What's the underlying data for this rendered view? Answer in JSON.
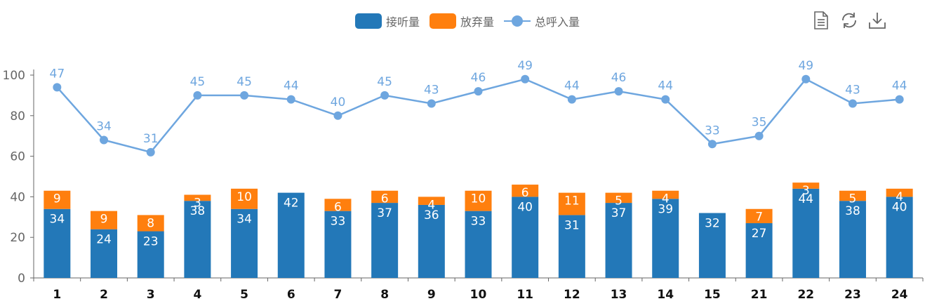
{
  "legend": {
    "answered": "接听量",
    "abandoned": "放弃量",
    "total": "总呼入量"
  },
  "toolbox": [
    "data-view-icon",
    "refresh-icon",
    "download-icon"
  ],
  "colors": {
    "answered": "#2378b8",
    "abandoned": "#ff7f0e",
    "total": "#6ea6df",
    "axis": "#666666",
    "grid": "#cccccc",
    "bar_label": "#ffffff",
    "x_label": "#111111"
  },
  "chart_data": {
    "type": "bar",
    "categories": [
      "1",
      "2",
      "3",
      "4",
      "5",
      "6",
      "7",
      "8",
      "9",
      "10",
      "11",
      "12",
      "13",
      "14",
      "15",
      "21",
      "22",
      "23",
      "24"
    ],
    "series": [
      {
        "name": "接听量",
        "kind": "bar",
        "stack": "calls",
        "values": [
          34,
          24,
          23,
          38,
          34,
          42,
          33,
          37,
          36,
          33,
          40,
          31,
          37,
          39,
          32,
          27,
          44,
          38,
          40
        ]
      },
      {
        "name": "放弃量",
        "kind": "bar",
        "stack": "calls",
        "values": [
          9,
          9,
          8,
          3,
          10,
          0,
          6,
          6,
          4,
          10,
          6,
          11,
          5,
          4,
          0,
          7,
          3,
          5,
          4
        ]
      },
      {
        "name": "总呼入量",
        "kind": "line",
        "values": [
          47,
          34,
          31,
          45,
          45,
          44,
          40,
          45,
          43,
          46,
          49,
          44,
          46,
          44,
          33,
          35,
          49,
          43,
          44
        ]
      }
    ],
    "yticks": [
      0,
      20,
      40,
      60,
      80,
      100
    ],
    "ylim": [
      0,
      100
    ],
    "grid": false,
    "legend_position": "top-center"
  }
}
